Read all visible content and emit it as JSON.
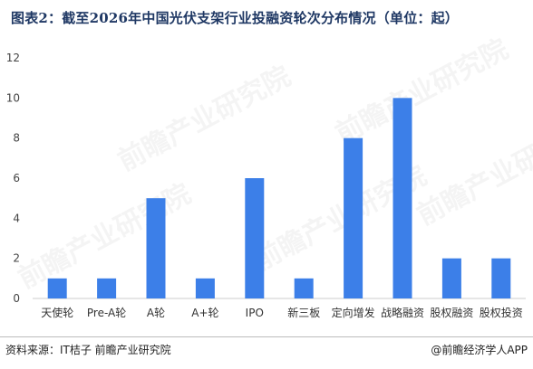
{
  "title": "图表2：截至2026年中国光伏支架行业投融资轮次分布情况（单位：起）",
  "source": "资料来源：IT桔子  前瞻产业研究院",
  "brand": "@前瞻经济学人APP",
  "watermark": "前瞻产业研究院",
  "colors": {
    "bar": "#3c7fe8",
    "title": "#1f3864"
  },
  "chart_data": {
    "type": "bar",
    "categories": [
      "天使轮",
      "Pre-A轮",
      "A轮",
      "A+轮",
      "IPO",
      "新三板",
      "定向增发",
      "战略融资",
      "股权融资",
      "股权投资"
    ],
    "values": [
      1,
      1,
      5,
      1,
      6,
      1,
      8,
      10,
      2,
      2
    ],
    "title": "图表2：截至2026年中国光伏支架行业投融资轮次分布情况（单位：起）",
    "xlabel": "",
    "ylabel": "",
    "ylim": [
      0,
      12
    ],
    "yticks": [
      0,
      2,
      4,
      6,
      8,
      10,
      12
    ],
    "grid": false,
    "legend": "none"
  }
}
